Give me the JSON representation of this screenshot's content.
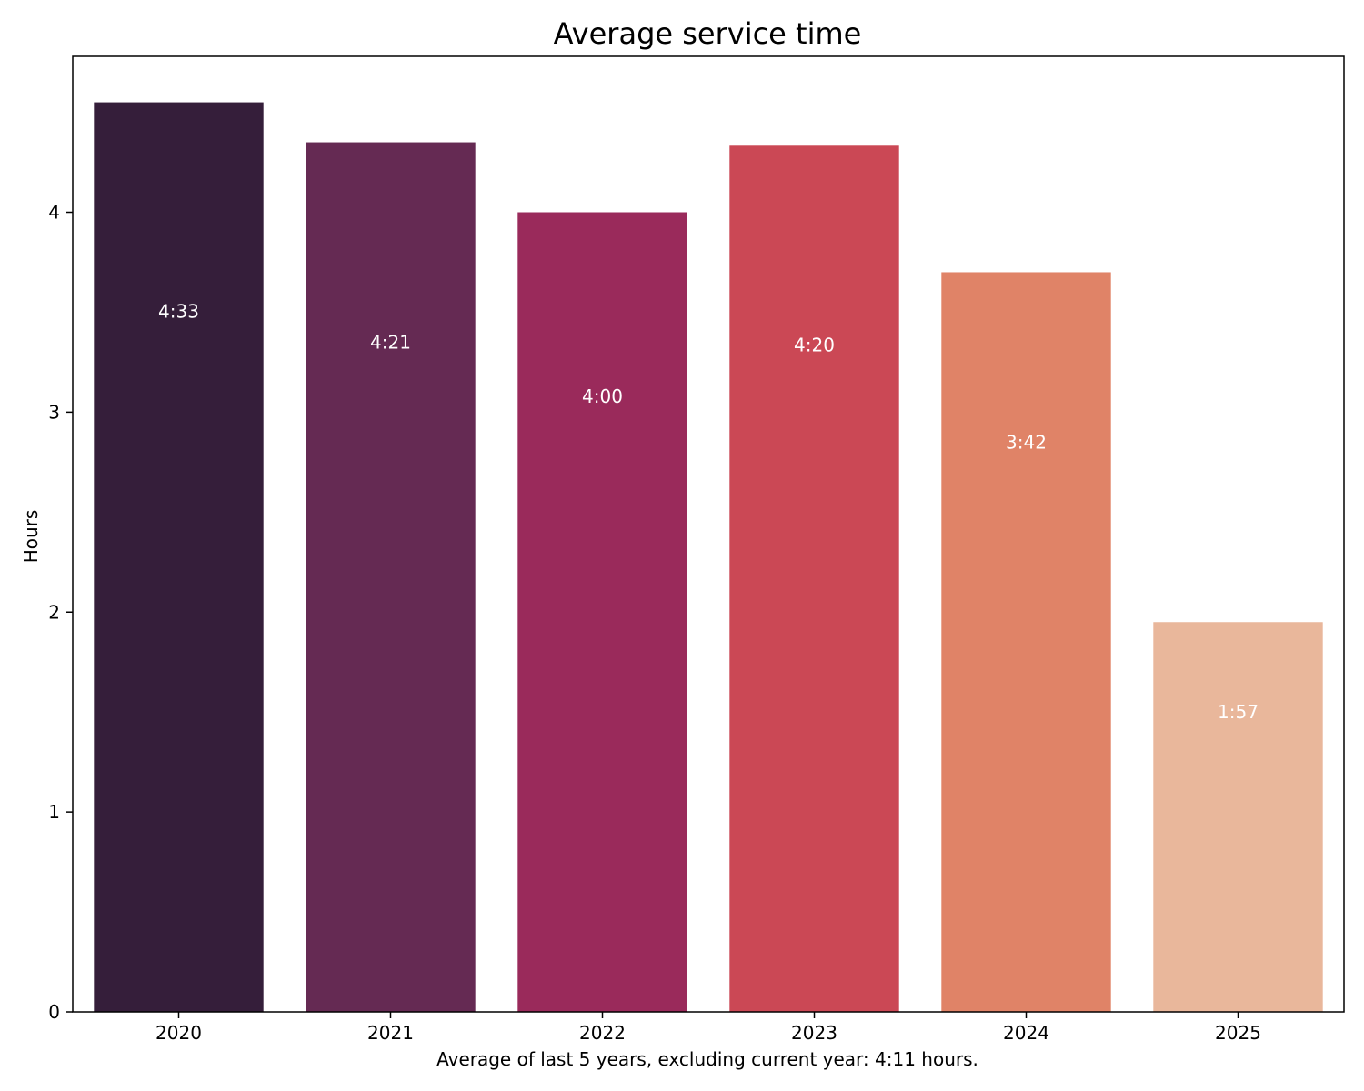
{
  "chart_data": {
    "type": "bar",
    "title": "Average service time",
    "ylabel": "Hours",
    "xlabel": "Average of last 5 years, excluding current year: 4:11 hours.",
    "categories": [
      "2020",
      "2021",
      "2022",
      "2023",
      "2024",
      "2025"
    ],
    "values": [
      4.55,
      4.35,
      4.0,
      4.333,
      3.7,
      1.95
    ],
    "data_labels": [
      "4:33",
      "4:21",
      "4:00",
      "4:20",
      "3:42",
      "1:57"
    ],
    "colors": [
      "#351e3a",
      "#652a53",
      "#9a2a5b",
      "#cb4855",
      "#e08367",
      "#e9b79b"
    ],
    "ylim": [
      0,
      4.78
    ],
    "yticks": [
      0,
      1,
      2,
      3,
      4
    ],
    "grid": false,
    "legend": "none"
  }
}
